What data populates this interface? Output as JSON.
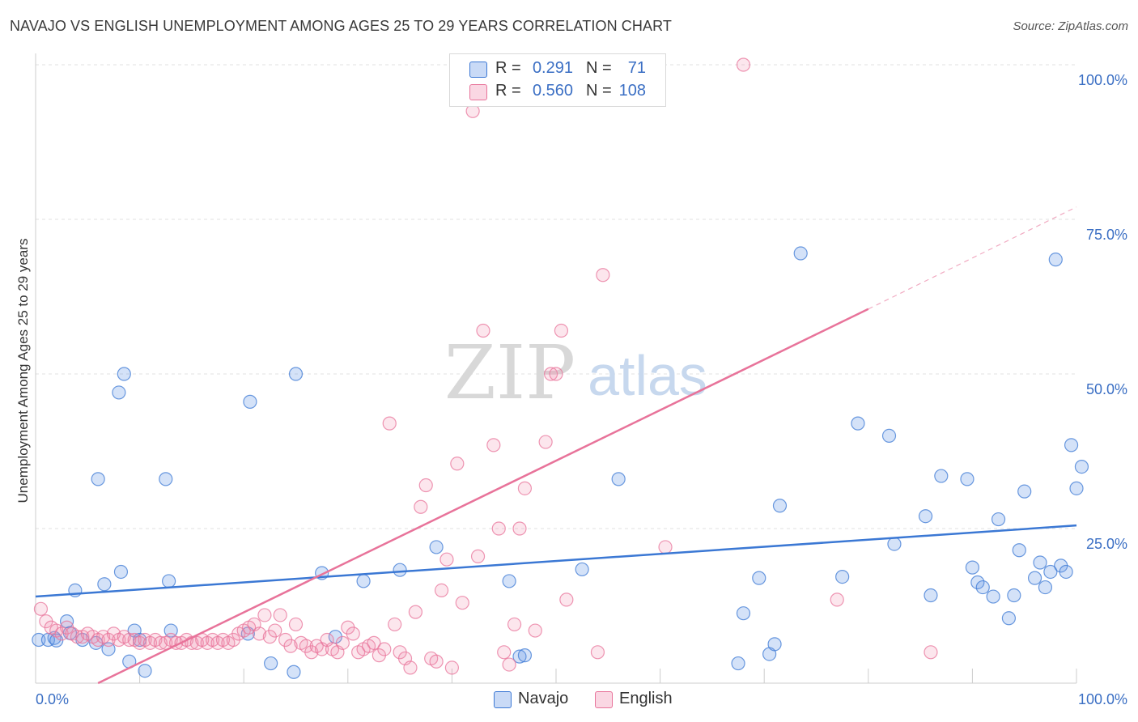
{
  "title": "NAVAJO VS ENGLISH UNEMPLOYMENT AMONG AGES 25 TO 29 YEARS CORRELATION CHART",
  "source": "Source: ZipAtlas.com",
  "watermark": {
    "part1": "ZIP",
    "part2": "atlas"
  },
  "legend_top": {
    "rows": [
      {
        "r_label": "R =",
        "r_value": "0.291",
        "n_label": "N =",
        "n_value": "71",
        "color": "#3b78d4"
      },
      {
        "r_label": "R =",
        "r_value": "0.560",
        "n_label": "N =",
        "n_value": "108",
        "color": "#e8739a"
      }
    ]
  },
  "legend_bottom": {
    "items": [
      {
        "label": "Navajo",
        "color": "#3b78d4"
      },
      {
        "label": "English",
        "color": "#e8739a"
      }
    ]
  },
  "chart_data": {
    "type": "scatter",
    "title": "NAVAJO VS ENGLISH UNEMPLOYMENT AMONG AGES 25 TO 29 YEARS CORRELATION CHART",
    "xlabel": "",
    "ylabel": "Unemployment Among Ages 25 to 29 years",
    "xlim": [
      0,
      100
    ],
    "ylim": [
      0,
      100
    ],
    "x_tick_labels": [
      {
        "value": 0,
        "label": "0.0%"
      },
      {
        "value": 100,
        "label": "100.0%"
      }
    ],
    "y_tick_labels": [
      {
        "value": 25,
        "label": "25.0%"
      },
      {
        "value": 50,
        "label": "50.0%"
      },
      {
        "value": 75,
        "label": "75.0%"
      },
      {
        "value": 100,
        "label": "100.0%"
      }
    ],
    "grid": true,
    "series": [
      {
        "name": "Navajo",
        "color": "#3b78d4",
        "fill": "rgba(100,150,230,0.28)",
        "trend": {
          "x": [
            0,
            100
          ],
          "y": [
            14.0,
            25.5
          ],
          "dashed_to": null
        },
        "points": [
          [
            0.3,
            7
          ],
          [
            1.2,
            7
          ],
          [
            1.8,
            7.3
          ],
          [
            2.0,
            6.9
          ],
          [
            3.0,
            10
          ],
          [
            3.3,
            8.1
          ],
          [
            3.8,
            15
          ],
          [
            4.5,
            7
          ],
          [
            5.8,
            6.5
          ],
          [
            6.0,
            33
          ],
          [
            6.6,
            16
          ],
          [
            7.0,
            5.5
          ],
          [
            8.0,
            47
          ],
          [
            8.5,
            50
          ],
          [
            8.2,
            18
          ],
          [
            9.0,
            3.5
          ],
          [
            9.5,
            8.5
          ],
          [
            10.0,
            7
          ],
          [
            10.5,
            2
          ],
          [
            12.5,
            33
          ],
          [
            12.8,
            16.5
          ],
          [
            13.0,
            8.5
          ],
          [
            20.6,
            45.5
          ],
          [
            20.4,
            8
          ],
          [
            22.6,
            3.2
          ],
          [
            24.8,
            1.8
          ],
          [
            25.0,
            50
          ],
          [
            27.5,
            17.8
          ],
          [
            28.8,
            7.5
          ],
          [
            31.5,
            16.5
          ],
          [
            35.0,
            18.3
          ],
          [
            38.5,
            22
          ],
          [
            45.5,
            16.5
          ],
          [
            46.5,
            4.3
          ],
          [
            47.0,
            4.5
          ],
          [
            52.5,
            18.4
          ],
          [
            56.0,
            33
          ],
          [
            67.5,
            3.2
          ],
          [
            69.5,
            17
          ],
          [
            68.0,
            11.3
          ],
          [
            70.5,
            4.7
          ],
          [
            71.0,
            6.3
          ],
          [
            71.5,
            28.7
          ],
          [
            73.5,
            69.5
          ],
          [
            77.5,
            17.2
          ],
          [
            79.0,
            42
          ],
          [
            82.0,
            40
          ],
          [
            82.5,
            22.5
          ],
          [
            85.5,
            27
          ],
          [
            86.0,
            14.2
          ],
          [
            87.0,
            33.5
          ],
          [
            89.5,
            33
          ],
          [
            90.0,
            18.7
          ],
          [
            90.5,
            16.3
          ],
          [
            91.0,
            15.5
          ],
          [
            92.0,
            14
          ],
          [
            92.5,
            26.5
          ],
          [
            93.5,
            10.5
          ],
          [
            94.0,
            14.2
          ],
          [
            94.5,
            21.5
          ],
          [
            95.0,
            31
          ],
          [
            96.0,
            17
          ],
          [
            96.5,
            19.5
          ],
          [
            97.0,
            15.5
          ],
          [
            97.5,
            18
          ],
          [
            98.0,
            68.5
          ],
          [
            98.5,
            19
          ],
          [
            99.0,
            18
          ],
          [
            99.5,
            38.5
          ],
          [
            100.0,
            31.5
          ],
          [
            100.5,
            35
          ]
        ]
      },
      {
        "name": "English",
        "color": "#e8739a",
        "fill": "rgba(240,140,175,0.22)",
        "trend": {
          "x": [
            6,
            80
          ],
          "y": [
            0,
            60.5
          ],
          "dashed_to": [
            100,
            77
          ]
        },
        "points": [
          [
            0.5,
            12
          ],
          [
            1.0,
            10
          ],
          [
            1.5,
            9
          ],
          [
            2.0,
            8.5
          ],
          [
            2.5,
            8
          ],
          [
            3.0,
            9
          ],
          [
            3.5,
            8
          ],
          [
            4.0,
            7.5
          ],
          [
            4.5,
            7.5
          ],
          [
            5.0,
            8
          ],
          [
            5.5,
            7.5
          ],
          [
            6.0,
            7
          ],
          [
            6.5,
            7.5
          ],
          [
            7.0,
            7
          ],
          [
            7.5,
            8
          ],
          [
            8.0,
            7
          ],
          [
            8.5,
            7.5
          ],
          [
            9.0,
            7
          ],
          [
            9.5,
            7
          ],
          [
            10.0,
            6.5
          ],
          [
            10.5,
            7
          ],
          [
            11.0,
            6.5
          ],
          [
            11.5,
            7
          ],
          [
            12.0,
            6.5
          ],
          [
            12.5,
            6.5
          ],
          [
            13.0,
            7
          ],
          [
            13.5,
            6.5
          ],
          [
            14.0,
            6.5
          ],
          [
            14.5,
            7
          ],
          [
            15.0,
            6.5
          ],
          [
            15.5,
            6.5
          ],
          [
            16.0,
            7
          ],
          [
            16.5,
            6.5
          ],
          [
            17.0,
            7
          ],
          [
            17.5,
            6.5
          ],
          [
            18.0,
            7
          ],
          [
            18.5,
            6.5
          ],
          [
            19.0,
            7
          ],
          [
            19.5,
            8
          ],
          [
            20.0,
            8.5
          ],
          [
            20.5,
            9
          ],
          [
            21.0,
            9.5
          ],
          [
            21.5,
            8
          ],
          [
            22.0,
            11
          ],
          [
            22.5,
            7.5
          ],
          [
            23.0,
            8.5
          ],
          [
            23.5,
            11
          ],
          [
            24.0,
            7
          ],
          [
            24.5,
            6
          ],
          [
            25.0,
            9.5
          ],
          [
            25.5,
            6.5
          ],
          [
            26.0,
            6
          ],
          [
            26.5,
            5
          ],
          [
            27.0,
            6
          ],
          [
            27.5,
            5.5
          ],
          [
            28.0,
            7
          ],
          [
            28.5,
            5.5
          ],
          [
            29.0,
            5
          ],
          [
            29.5,
            6.5
          ],
          [
            30.0,
            9
          ],
          [
            30.5,
            8
          ],
          [
            31.0,
            5
          ],
          [
            31.5,
            5.5
          ],
          [
            32.0,
            6
          ],
          [
            32.5,
            6.5
          ],
          [
            33.0,
            4.5
          ],
          [
            33.5,
            5.5
          ],
          [
            34.0,
            42
          ],
          [
            34.5,
            9.5
          ],
          [
            35.0,
            5
          ],
          [
            35.5,
            4
          ],
          [
            36.0,
            2.5
          ],
          [
            36.5,
            11.5
          ],
          [
            37.0,
            28.5
          ],
          [
            37.5,
            32
          ],
          [
            38.0,
            4
          ],
          [
            38.5,
            3.5
          ],
          [
            39.0,
            15
          ],
          [
            39.5,
            20
          ],
          [
            40.0,
            2.5
          ],
          [
            40.5,
            35.5
          ],
          [
            41.0,
            13
          ],
          [
            41.5,
            100
          ],
          [
            42.0,
            92.5
          ],
          [
            42.5,
            20.5
          ],
          [
            43.0,
            57
          ],
          [
            44.0,
            38.5
          ],
          [
            44.5,
            25
          ],
          [
            45.0,
            5
          ],
          [
            45.5,
            3
          ],
          [
            46.0,
            9.5
          ],
          [
            46.5,
            25
          ],
          [
            47.0,
            31.5
          ],
          [
            48.0,
            8.5
          ],
          [
            49.0,
            39
          ],
          [
            49.5,
            50
          ],
          [
            50.0,
            50
          ],
          [
            50.5,
            57
          ],
          [
            51.0,
            13.5
          ],
          [
            51.5,
            100
          ],
          [
            54.0,
            5
          ],
          [
            54.5,
            66
          ],
          [
            56.0,
            100
          ],
          [
            60.5,
            22
          ],
          [
            68.0,
            100
          ],
          [
            77.0,
            13.5
          ],
          [
            86.0,
            5
          ]
        ]
      }
    ]
  }
}
